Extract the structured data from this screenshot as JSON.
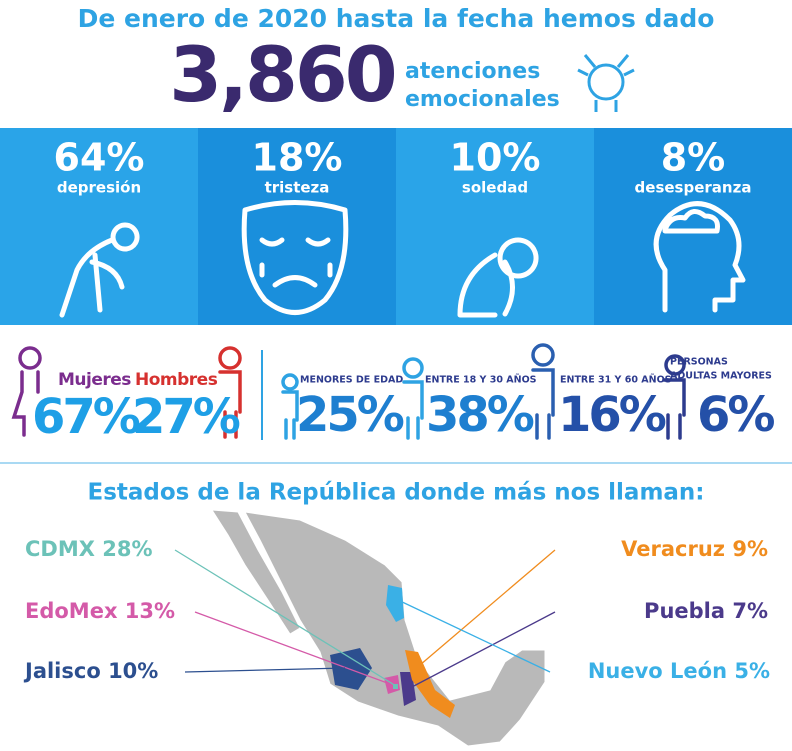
{
  "header": {
    "intro": "De enero de 2020 hasta la fecha hemos dado",
    "total": "3,860",
    "label": [
      "atenciones",
      "emocionales"
    ]
  },
  "emotions": [
    {
      "value": "64%",
      "label": "depresión"
    },
    {
      "value": "18%",
      "label": "tristeza"
    },
    {
      "value": "10%",
      "label": "soledad"
    },
    {
      "value": "8%",
      "label": "desesperanza"
    }
  ],
  "gender": [
    {
      "label": "Mujeres",
      "value": "67%",
      "color": "#7b2d8e"
    },
    {
      "label": "Hombres",
      "value": "27%",
      "color": "#d6312f"
    }
  ],
  "ages": [
    {
      "label": [
        "MENORES DE EDAD"
      ],
      "value": "25%"
    },
    {
      "label": [
        "ENTRE 18 Y 30 AÑOS"
      ],
      "value": "38%"
    },
    {
      "label": [
        "ENTRE 31 Y 60 AÑOS"
      ],
      "value": "16%"
    },
    {
      "label": [
        "PERSONAS",
        "ADULTAS MAYORES"
      ],
      "value": "6%"
    }
  ],
  "states": {
    "title": "Estados de la República donde más nos llaman:",
    "items": [
      {
        "label": "CDMX 28%",
        "color": "#6cc2b8"
      },
      {
        "label": "EdoMex 13%",
        "color": "#d45aa8"
      },
      {
        "label": "Jalisco 10%",
        "color": "#2c4f8f"
      },
      {
        "label": "Veracruz 9%",
        "color": "#f08c1e"
      },
      {
        "label": "Puebla 7%",
        "color": "#4b3a8b"
      },
      {
        "label": "Nuevo León 5%",
        "color": "#3ab0e6"
      }
    ]
  }
}
